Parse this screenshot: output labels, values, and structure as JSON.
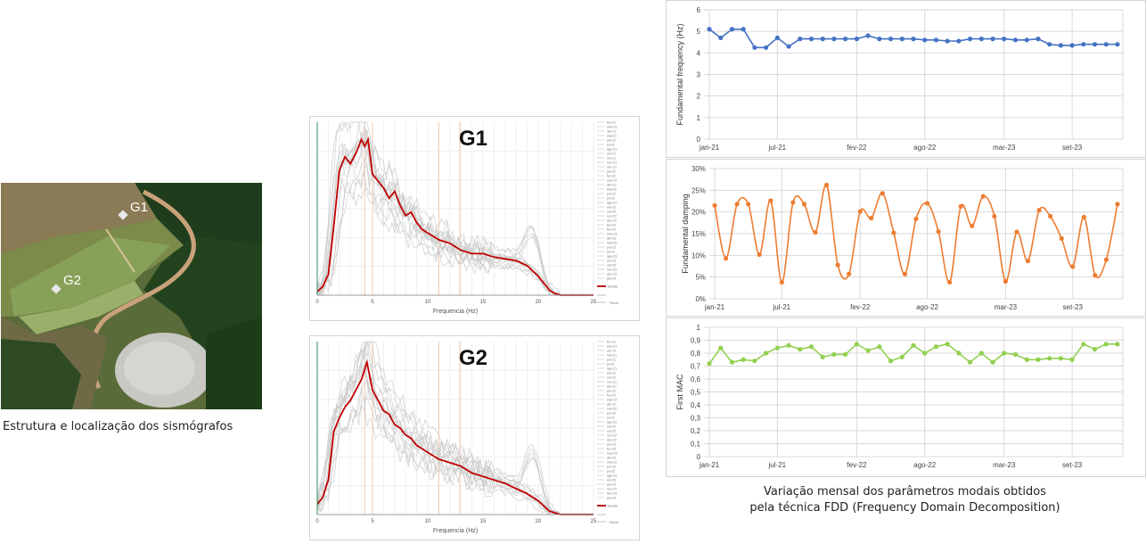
{
  "left": {
    "caption": "Estrutura e localização dos sismógrafos",
    "markers": [
      "G1",
      "G2"
    ]
  },
  "spectra": {
    "x_ticks": [
      "0",
      "5",
      "10",
      "15",
      "20",
      "25"
    ],
    "xlabel": "Frequencia (Hz)",
    "legend_label": "Media",
    "legend_extra": "Picos",
    "legend_months": [
      "fev-21",
      "mar-21",
      "abr-21",
      "mai-21",
      "jun-21",
      "jul-21",
      "ago-21",
      "set-21",
      "out-21",
      "nov-21",
      "dez-21",
      "jan-22",
      "fev-22",
      "mar-22",
      "abr-22",
      "mai-22",
      "jun-22",
      "jul-22",
      "ago-22",
      "set-22",
      "out-22",
      "nov-22",
      "dez-22",
      "jan-23",
      "fev-23",
      "mar-23",
      "abr-23",
      "mai-23",
      "jun-23",
      "jul-23",
      "ago-23",
      "set-23",
      "out-23",
      "nov-23",
      "dez-23",
      "jan-24"
    ],
    "colors": {
      "mean": "#c00000",
      "individual": "#c8c8c8"
    }
  },
  "chart_data": [
    {
      "type": "line",
      "title": "G1",
      "xlabel": "Frequencia (Hz)",
      "xlim": [
        0,
        25
      ],
      "series": [
        {
          "name": "Media",
          "x": [
            0,
            0.5,
            1,
            1.5,
            2,
            2.5,
            3,
            3.5,
            4,
            4.3,
            4.6,
            5,
            5.5,
            6,
            6.5,
            7,
            7.5,
            8,
            8.5,
            9,
            9.5,
            10,
            11,
            12,
            13,
            14,
            15,
            16,
            17,
            18,
            19,
            20,
            20.5,
            21,
            21.5,
            22,
            23,
            24,
            25
          ],
          "y": [
            0.02,
            0.05,
            0.12,
            0.4,
            0.72,
            0.8,
            0.76,
            0.82,
            0.9,
            0.86,
            0.9,
            0.7,
            0.66,
            0.62,
            0.56,
            0.6,
            0.52,
            0.46,
            0.48,
            0.42,
            0.38,
            0.36,
            0.32,
            0.3,
            0.26,
            0.24,
            0.24,
            0.22,
            0.21,
            0.2,
            0.17,
            0.11,
            0.07,
            0.03,
            0.01,
            0.0,
            0.0,
            0.0,
            0.0
          ]
        }
      ]
    },
    {
      "type": "line",
      "title": "G2",
      "xlabel": "Frequencia (Hz)",
      "xlim": [
        0,
        25
      ],
      "series": [
        {
          "name": "Media",
          "x": [
            0,
            0.5,
            1,
            1.5,
            2,
            2.5,
            3,
            3.5,
            4,
            4.5,
            5,
            5.5,
            6,
            6.5,
            7,
            7.5,
            8,
            8.5,
            9,
            9.5,
            10,
            11,
            12,
            13,
            14,
            15,
            16,
            17,
            18,
            19,
            20,
            20.5,
            21,
            22,
            23,
            24,
            25
          ],
          "y": [
            0.06,
            0.1,
            0.2,
            0.48,
            0.56,
            0.62,
            0.66,
            0.72,
            0.78,
            0.88,
            0.72,
            0.66,
            0.6,
            0.58,
            0.52,
            0.5,
            0.46,
            0.44,
            0.4,
            0.38,
            0.36,
            0.32,
            0.3,
            0.28,
            0.24,
            0.22,
            0.2,
            0.18,
            0.15,
            0.12,
            0.08,
            0.05,
            0.02,
            0.0,
            0.0,
            0.0,
            0.0
          ]
        }
      ]
    },
    {
      "type": "line",
      "ylabel": "Fundamental frequency (Hz)",
      "ylim": [
        0,
        6
      ],
      "y_ticks": [
        "0",
        "1",
        "2",
        "3",
        "4",
        "5",
        "6"
      ],
      "x_ticks": [
        "jan-21",
        "jul-21",
        "fev-22",
        "ago-22",
        "mar-23",
        "set-23"
      ],
      "color": "#4472c4",
      "series": [
        {
          "values": [
            5.1,
            4.7,
            5.1,
            5.1,
            4.25,
            4.25,
            4.7,
            4.3,
            4.65,
            4.65,
            4.65,
            4.65,
            4.65,
            4.65,
            4.8,
            4.65,
            4.65,
            4.65,
            4.65,
            4.6,
            4.6,
            4.55,
            4.55,
            4.65,
            4.65,
            4.65,
            4.65,
            4.6,
            4.6,
            4.65,
            4.4,
            4.35,
            4.35,
            4.4,
            4.4,
            4.4,
            4.4
          ]
        }
      ]
    },
    {
      "type": "line",
      "ylabel": "Fundamental damping",
      "ylim": [
        0,
        30
      ],
      "y_ticks": [
        "0%",
        "5%",
        "10%",
        "15%",
        "20%",
        "25%",
        "30%"
      ],
      "x_ticks": [
        "jan-21",
        "jul-21",
        "fev-22",
        "ago-22",
        "mar-23",
        "set-23"
      ],
      "color": "#ed7d31",
      "series": [
        {
          "values": [
            21.5,
            9.3,
            21.8,
            21.8,
            10.2,
            22.6,
            3.8,
            22.2,
            21.8,
            15.3,
            26.2,
            7.8,
            5.7,
            20.1,
            18.6,
            24.3,
            15.2,
            5.7,
            18.4,
            22.0,
            15.5,
            3.8,
            21.3,
            16.8,
            23.6,
            19.0,
            4.0,
            15.4,
            8.7,
            20.4,
            19.0,
            13.9,
            7.4,
            18.8,
            5.4,
            9.0,
            21.8
          ]
        }
      ]
    },
    {
      "type": "line",
      "ylabel": "First MAC",
      "ylim": [
        0,
        1
      ],
      "y_ticks": [
        "0",
        "0,1",
        "0,2",
        "0,3",
        "0,4",
        "0,5",
        "0,6",
        "0,7",
        "0,8",
        "0,9",
        "1"
      ],
      "x_ticks": [
        "jan-21",
        "jul-21",
        "fev-22",
        "ago-22",
        "mar-23",
        "set-23"
      ],
      "color": "#92d050",
      "series": [
        {
          "values": [
            0.72,
            0.84,
            0.73,
            0.75,
            0.74,
            0.8,
            0.84,
            0.86,
            0.83,
            0.85,
            0.77,
            0.79,
            0.79,
            0.87,
            0.82,
            0.85,
            0.74,
            0.77,
            0.86,
            0.8,
            0.85,
            0.87,
            0.8,
            0.73,
            0.8,
            0.73,
            0.8,
            0.79,
            0.75,
            0.75,
            0.76,
            0.76,
            0.75,
            0.87,
            0.83,
            0.87,
            0.87
          ]
        }
      ]
    }
  ],
  "right_caption": {
    "line1": "Variação mensal dos parâmetros modais obtidos",
    "line2": "pela técnica FDD (Frequency Domain Decomposition)"
  }
}
